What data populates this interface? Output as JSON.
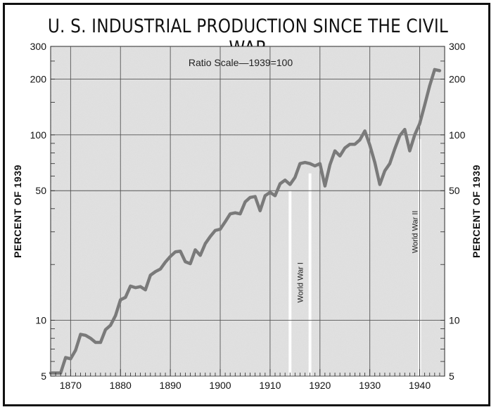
{
  "chart_data": {
    "type": "line",
    "title": "U. S. INDUSTRIAL PRODUCTION SINCE THE CIVIL WAR",
    "ylabel": "PERCENT OF 1939",
    "ylabel_right": "PERCENT OF 1939",
    "scale_note": "Ratio Scale—1939=100",
    "y_scale": "log",
    "ylim": [
      5,
      300
    ],
    "xlim": [
      1866,
      1945
    ],
    "yticks": [
      5,
      10,
      50,
      100,
      200,
      300
    ],
    "xticks": [
      1870,
      1880,
      1890,
      1900,
      1910,
      1920,
      1930,
      1940
    ],
    "grid": true,
    "annotations": [
      {
        "label": "World War I",
        "from": 1914,
        "to": 1918
      },
      {
        "label": "World War II",
        "from": 1940,
        "to": 1945
      }
    ],
    "series": [
      {
        "x": [
          1866,
          1867,
          1868,
          1869,
          1870,
          1871,
          1872,
          1873,
          1874,
          1875,
          1876,
          1877,
          1878,
          1879,
          1880,
          1881,
          1882,
          1883,
          1884,
          1885,
          1886,
          1887,
          1888,
          1889,
          1890,
          1891,
          1892,
          1893,
          1894,
          1895,
          1896,
          1897,
          1898,
          1899,
          1900,
          1901,
          1902,
          1903,
          1904,
          1905,
          1906,
          1907,
          1908,
          1909,
          1910,
          1911,
          1912,
          1913,
          1914,
          1915,
          1916,
          1917,
          1918,
          1919,
          1920,
          1921,
          1922,
          1923,
          1924,
          1925,
          1926,
          1927,
          1928,
          1929,
          1930,
          1931,
          1932,
          1933,
          1934,
          1935,
          1936,
          1937,
          1938,
          1939,
          1940,
          1941,
          1942,
          1943,
          1944
        ],
        "values": [
          5.2,
          5.2,
          5.2,
          6.3,
          6.2,
          6.9,
          8.4,
          8.3,
          8.0,
          7.6,
          7.6,
          8.9,
          9.4,
          10.6,
          12.9,
          13.3,
          15.3,
          15.0,
          15.2,
          14.6,
          17.5,
          18.3,
          18.9,
          20.6,
          22.1,
          23.4,
          23.6,
          20.7,
          20.2,
          24.0,
          22.4,
          25.9,
          28.3,
          30.5,
          31.0,
          34.0,
          37.5,
          38.0,
          37.5,
          43.5,
          46.0,
          46.5,
          39.0,
          47.0,
          49.0,
          47.0,
          54.5,
          57.0,
          54.0,
          59.0,
          70.0,
          71.0,
          70.0,
          68.0,
          70.0,
          53.0,
          69.0,
          82.0,
          77.0,
          85.0,
          89.0,
          89.0,
          94.0,
          105.0,
          88.0,
          71.0,
          54.0,
          64.0,
          70.0,
          84.0,
          99.0,
          107.0,
          82.0,
          100.0,
          115.0,
          145.0,
          184.0,
          225.0,
          222.0
        ]
      }
    ]
  }
}
